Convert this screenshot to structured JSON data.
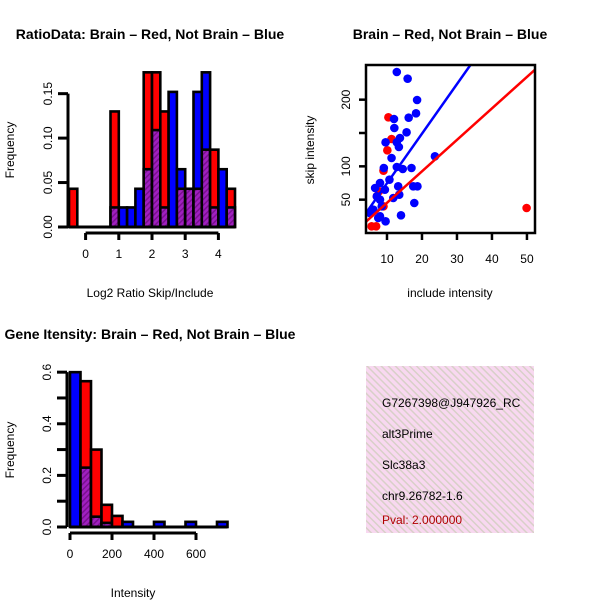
{
  "colors": {
    "red": "#ff0000",
    "blue": "#0000ff",
    "purple": "#a020c0",
    "pval": "#b00000",
    "panel_bg": "#f8d8f0"
  },
  "chart_data": [
    {
      "type": "bar",
      "title": "RatioData: Brain – Red, Not Brain – Blue",
      "xlabel": "Log2 Ratio Skip/Include",
      "ylabel": "Frequency",
      "bin_start": -0.5,
      "bin_width": 0.25,
      "xlim": [
        -0.5,
        4.5
      ],
      "ylim": [
        0,
        0.18
      ],
      "xticks": [
        "0",
        "1",
        "2",
        "3",
        "4"
      ],
      "yticks": [
        "0.00",
        "0.05",
        "0.10",
        "0.15"
      ],
      "series": [
        {
          "name": "Brain",
          "color": "red",
          "values": [
            0.043,
            0,
            0,
            0,
            0,
            0.13,
            0,
            0,
            0,
            0.174,
            0.174,
            0.13,
            0,
            0.043,
            0.043,
            0.043,
            0.087,
            0.087,
            0,
            0.043
          ]
        },
        {
          "name": "Not Brain",
          "color": "blue",
          "values": [
            0,
            0,
            0,
            0,
            0,
            0.022,
            0.022,
            0.022,
            0.043,
            0.065,
            0.109,
            0.022,
            0.152,
            0.065,
            0.043,
            0.152,
            0.174,
            0.022,
            0.065,
            0.022
          ]
        }
      ]
    },
    {
      "type": "scatter",
      "title": "Brain – Red, Not Brain – Blue",
      "xlabel": "include intensity",
      "ylabel": "skip intensity",
      "xlim": [
        4,
        52.3
      ],
      "ylim": [
        0,
        252
      ],
      "xticks": [
        "10",
        "20",
        "30",
        "40",
        "50"
      ],
      "yticks": [
        "50",
        "100",
        "150",
        "200"
      ],
      "ytick_labels_shown": [
        "50",
        "100",
        "200"
      ],
      "series": [
        {
          "name": "Not Brain",
          "color": "blue",
          "points": [
            [
              12.8,
              241.5
            ],
            [
              15.9,
              231.5
            ],
            [
              18.6,
              199.5
            ],
            [
              18.3,
              179.5
            ],
            [
              16.2,
              173
            ],
            [
              12,
              171
            ],
            [
              12.1,
              157.5
            ],
            [
              15.6,
              151
            ],
            [
              13.7,
              142.5
            ],
            [
              9.6,
              136
            ],
            [
              12.8,
              136
            ],
            [
              13.4,
              129
            ],
            [
              11.3,
              112.5
            ],
            [
              23.7,
              115
            ],
            [
              9.1,
              97.5
            ],
            [
              12.8,
              99
            ],
            [
              17,
              97.5
            ],
            [
              14.5,
              96
            ],
            [
              10.7,
              80
            ],
            [
              8,
              75
            ],
            [
              6.6,
              67.5
            ],
            [
              9.4,
              65
            ],
            [
              13.2,
              70
            ],
            [
              17.5,
              70
            ],
            [
              18.7,
              70
            ],
            [
              7.1,
              55
            ],
            [
              13.5,
              57.5
            ],
            [
              11.8,
              52.5
            ],
            [
              8,
              50
            ],
            [
              17.8,
              45
            ],
            [
              6.1,
              35
            ],
            [
              5.1,
              30
            ],
            [
              8,
              25
            ],
            [
              9.6,
              17.5
            ],
            [
              14,
              26.5
            ],
            [
              8.5,
              40
            ],
            [
              7.5,
              22.5
            ]
          ],
          "fit": {
            "intercept": 0.2,
            "slope": 7.44
          }
        },
        {
          "name": "Brain",
          "color": "red",
          "points": [
            [
              10.4,
              173.5
            ],
            [
              11.3,
              141
            ],
            [
              10.1,
              124
            ],
            [
              9,
              93.5
            ],
            [
              7.1,
              55
            ],
            [
              9,
              40
            ],
            [
              5.6,
              10
            ],
            [
              6.9,
              10
            ],
            [
              49.9,
              37.5
            ],
            [
              7.7,
              62.5
            ]
          ],
          "fit": {
            "intercept": -1.9,
            "slope": 4.72
          }
        }
      ]
    },
    {
      "type": "bar",
      "title": "Gene Itensity: Brain – Red, Not Brain – Blue",
      "xlabel": "Intensity",
      "ylabel": "Frequency",
      "bin_start": 0,
      "bin_width": 50,
      "xlim": [
        0,
        750
      ],
      "ylim": [
        0,
        0.62
      ],
      "xticks": [
        "0",
        "200",
        "400",
        "600"
      ],
      "yticks": [
        "0.0",
        "0.2",
        "0.4",
        "0.6"
      ],
      "series": [
        {
          "name": "Brain",
          "color": "red",
          "values": [
            0,
            0.565,
            0.3,
            0.086,
            0.043,
            0,
            0,
            0,
            0,
            0,
            0,
            0,
            0,
            0,
            0
          ]
        },
        {
          "name": "Not Brain",
          "color": "blue",
          "values": [
            0.6,
            0.23,
            0.04,
            0.016,
            0,
            0.02,
            0,
            0,
            0.02,
            0,
            0,
            0.02,
            0,
            0,
            0.02
          ]
        }
      ]
    }
  ],
  "info_panel": {
    "lines": [
      "G7267398@J947926_RC",
      "alt3Prime",
      "Slc38a3",
      "chr9.26782-1.6"
    ],
    "pval": "Pval: 2.000000"
  }
}
